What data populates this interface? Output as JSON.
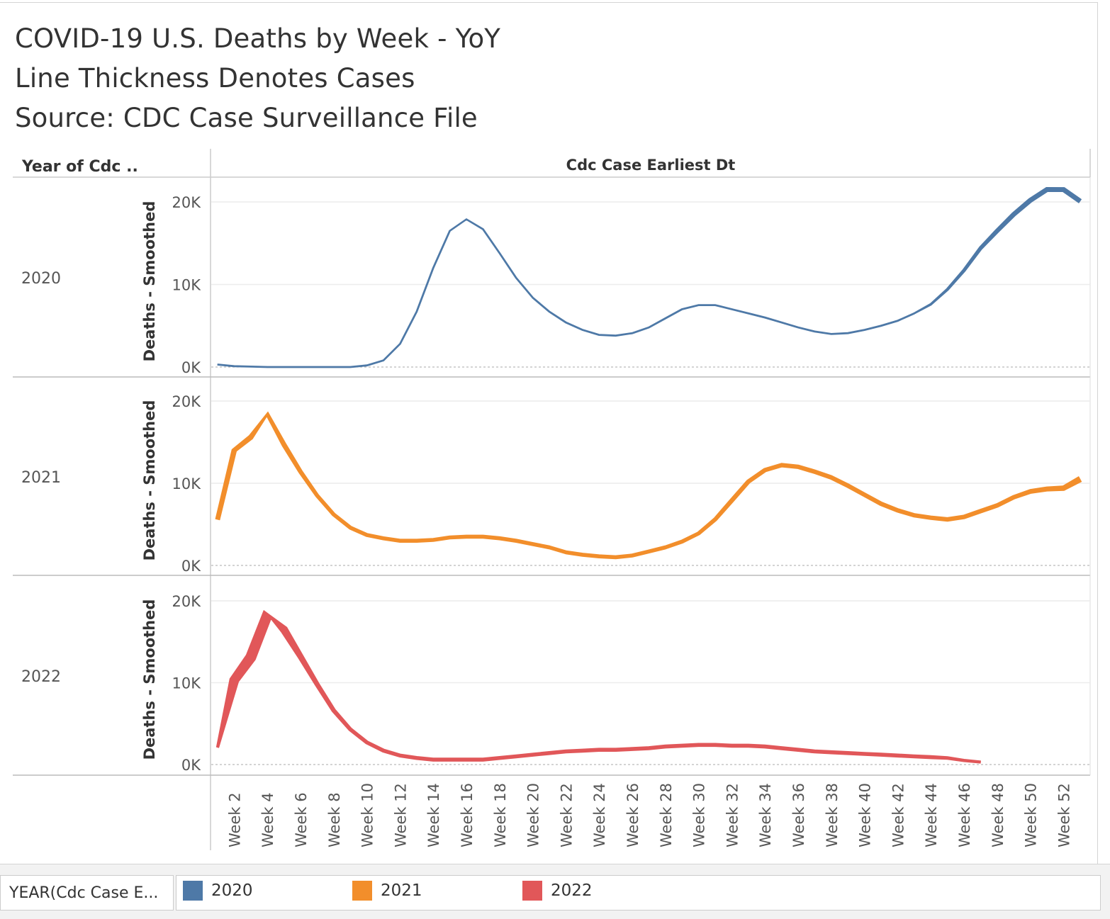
{
  "header": {
    "title_lines": [
      "COVID-19 U.S. Deaths by Week - YoY",
      "Line Thickness Denotes Cases",
      "Source: CDC Case Surveillance File"
    ],
    "row_header": "Year of Cdc ..",
    "column_header": "Cdc Case Earliest Dt"
  },
  "legend": {
    "title": "YEAR(Cdc Case E...",
    "items": [
      {
        "label": "2020",
        "color": "#4e79a7"
      },
      {
        "label": "2021",
        "color": "#f28e2b"
      },
      {
        "label": "2022",
        "color": "#e15759"
      }
    ]
  },
  "chart_data": {
    "type": "line",
    "title": "COVID-19 U.S. Deaths by Week - YoY",
    "xlabel": "Cdc Case Earliest Dt",
    "ylabel": "Deaths - Smoothed",
    "x_ticks": [
      "Week 2",
      "Week 4",
      "Week 6",
      "Week 8",
      "Week 10",
      "Week 12",
      "Week 14",
      "Week 16",
      "Week 18",
      "Week 20",
      "Week 22",
      "Week 24",
      "Week 26",
      "Week 28",
      "Week 30",
      "Week 32",
      "Week 34",
      "Week 36",
      "Week 38",
      "Week 40",
      "Week 42",
      "Week 44",
      "Week 46",
      "Week 48",
      "Week 50",
      "Week 52"
    ],
    "y_ticks": [
      "0K",
      "10K",
      "20K"
    ],
    "ylim": [
      0,
      20000
    ],
    "unit": "thousands",
    "series": [
      {
        "name": "2020",
        "color": "#4e79a7",
        "values": [
          0.3,
          0.1,
          0.05,
          0,
          0,
          0,
          0,
          0,
          0,
          0.2,
          0.8,
          2.8,
          6.7,
          12.0,
          16.5,
          17.9,
          16.7,
          13.8,
          10.8,
          8.4,
          6.7,
          5.4,
          4.5,
          3.9,
          3.8,
          4.1,
          4.8,
          5.9,
          7.0,
          7.5,
          7.5,
          7.0,
          6.5,
          6.0,
          5.4,
          4.8,
          4.3,
          4.0,
          4.1,
          4.5,
          5.0,
          5.6,
          6.5,
          7.6,
          9.4,
          11.7,
          14.4,
          16.5,
          18.5,
          20.2,
          21.5,
          21.5,
          20.1
        ],
        "cases_relative": [
          0,
          0,
          0,
          0,
          0,
          0,
          0,
          0,
          0,
          0,
          0,
          0,
          0,
          0,
          0,
          0,
          0,
          0,
          0,
          0,
          0,
          0,
          0,
          0,
          0,
          0,
          0,
          0,
          0,
          0,
          0,
          0,
          0,
          0,
          0,
          0,
          0,
          0,
          0,
          0,
          0,
          0,
          0,
          0.05,
          0.1,
          0.15,
          0.2,
          0.25,
          0.28,
          0.3,
          0.32,
          0.32,
          0.3
        ]
      },
      {
        "name": "2021",
        "color": "#f28e2b",
        "values": [
          5.6,
          14.0,
          15.6,
          18.4,
          14.7,
          11.4,
          8.5,
          6.2,
          4.6,
          3.7,
          3.3,
          3.0,
          3.0,
          3.1,
          3.4,
          3.5,
          3.5,
          3.3,
          3.0,
          2.6,
          2.2,
          1.6,
          1.3,
          1.1,
          1.0,
          1.2,
          1.7,
          2.2,
          2.9,
          3.9,
          5.6,
          7.9,
          10.2,
          11.6,
          12.2,
          12.0,
          11.4,
          10.7,
          9.7,
          8.6,
          7.5,
          6.7,
          6.1,
          5.8,
          5.6,
          5.9,
          6.6,
          7.3,
          8.3,
          9.0,
          9.3,
          9.4,
          10.5
        ],
        "cases_relative": [
          0.3,
          0.35,
          0.35,
          0.35,
          0.3,
          0.25,
          0.2,
          0.2,
          0.2,
          0.2,
          0.2,
          0.2,
          0.2,
          0.2,
          0.2,
          0.2,
          0.2,
          0.2,
          0.2,
          0.2,
          0.2,
          0.2,
          0.2,
          0.2,
          0.2,
          0.2,
          0.2,
          0.2,
          0.2,
          0.2,
          0.22,
          0.25,
          0.25,
          0.25,
          0.25,
          0.25,
          0.25,
          0.25,
          0.25,
          0.25,
          0.25,
          0.25,
          0.25,
          0.25,
          0.25,
          0.25,
          0.25,
          0.25,
          0.25,
          0.28,
          0.3,
          0.35,
          0.45
        ]
      },
      {
        "name": "2022",
        "color": "#e15759",
        "values": [
          2.1,
          10.3,
          13.1,
          18.3,
          16.5,
          13.2,
          9.8,
          6.6,
          4.3,
          2.7,
          1.7,
          1.1,
          0.8,
          0.6,
          0.6,
          0.6,
          0.6,
          0.8,
          1.0,
          1.2,
          1.4,
          1.6,
          1.7,
          1.8,
          1.8,
          1.9,
          2.0,
          2.2,
          2.3,
          2.4,
          2.4,
          2.3,
          2.3,
          2.2,
          2.0,
          1.8,
          1.6,
          1.5,
          1.4,
          1.3,
          1.2,
          1.1,
          1.0,
          0.9,
          0.8,
          0.5,
          0.3
        ],
        "cases_relative": [
          0.1,
          0.8,
          0.9,
          1.0,
          0.6,
          0.4,
          0.3,
          0.25,
          0.2,
          0.2,
          0.2,
          0.2,
          0.2,
          0.2,
          0.2,
          0.2,
          0.2,
          0.2,
          0.2,
          0.2,
          0.2,
          0.2,
          0.2,
          0.2,
          0.2,
          0.2,
          0.2,
          0.2,
          0.2,
          0.2,
          0.2,
          0.2,
          0.2,
          0.2,
          0.2,
          0.2,
          0.2,
          0.2,
          0.2,
          0.2,
          0.2,
          0.2,
          0.2,
          0.2,
          0.15,
          0.12,
          0.1
        ]
      }
    ]
  }
}
